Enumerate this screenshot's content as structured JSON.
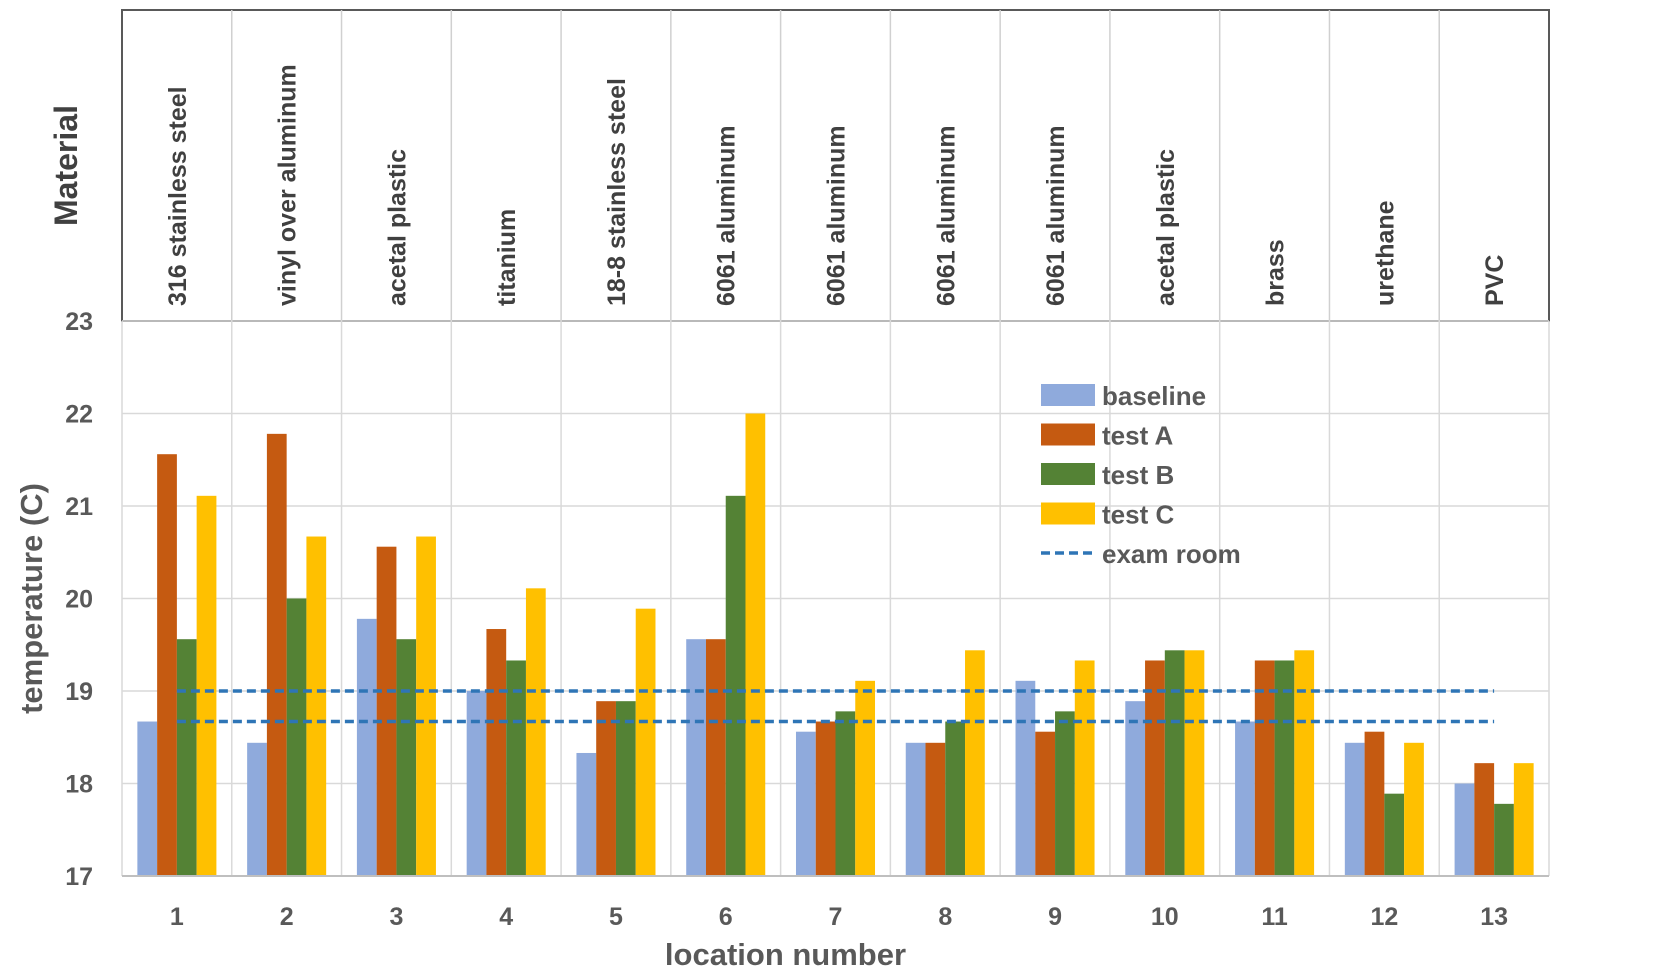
{
  "chart_data": {
    "type": "bar",
    "title": "",
    "xlabel": "location number",
    "ylabel": "temperature (C)",
    "header_label": "Material",
    "ylim": [
      17,
      23
    ],
    "yticks": [
      17,
      18,
      19,
      20,
      21,
      22,
      23
    ],
    "grid": true,
    "legend_position": "upper-right",
    "categories": [
      "1",
      "2",
      "3",
      "4",
      "5",
      "6",
      "7",
      "8",
      "9",
      "10",
      "11",
      "12",
      "13"
    ],
    "materials": [
      "316 stainless steel",
      "vinyl over aluminum",
      "acetal plastic",
      "titanium",
      "18-8 stainless steel",
      "6061 aluminum",
      "6061 aluminum",
      "6061 aluminum",
      "6061 aluminum",
      "acetal plastic",
      "brass",
      "urethane",
      "PVC"
    ],
    "series": [
      {
        "name": "baseline",
        "color": "#8faadc",
        "values": [
          18.67,
          18.44,
          19.78,
          19.0,
          18.33,
          19.56,
          18.56,
          18.44,
          19.11,
          18.89,
          18.67,
          18.44,
          18.0
        ]
      },
      {
        "name": "test A",
        "color": "#c55a11",
        "values": [
          21.56,
          21.78,
          20.56,
          19.67,
          18.89,
          19.56,
          18.67,
          18.44,
          18.56,
          19.33,
          19.33,
          18.56,
          18.22
        ]
      },
      {
        "name": "test B",
        "color": "#548235",
        "values": [
          19.56,
          20.0,
          19.56,
          19.33,
          18.89,
          21.11,
          18.78,
          18.67,
          18.78,
          19.44,
          19.33,
          17.89,
          17.78
        ]
      },
      {
        "name": "test C",
        "color": "#ffc000",
        "values": [
          21.11,
          20.67,
          20.67,
          20.11,
          19.89,
          22.0,
          19.11,
          19.44,
          19.33,
          19.44,
          19.44,
          18.44,
          18.22
        ]
      }
    ],
    "reference_lines": {
      "name": "exam room",
      "color": "#2e75b6",
      "values": [
        19.0,
        18.67
      ],
      "x_start": 1,
      "x_end": 13
    }
  }
}
